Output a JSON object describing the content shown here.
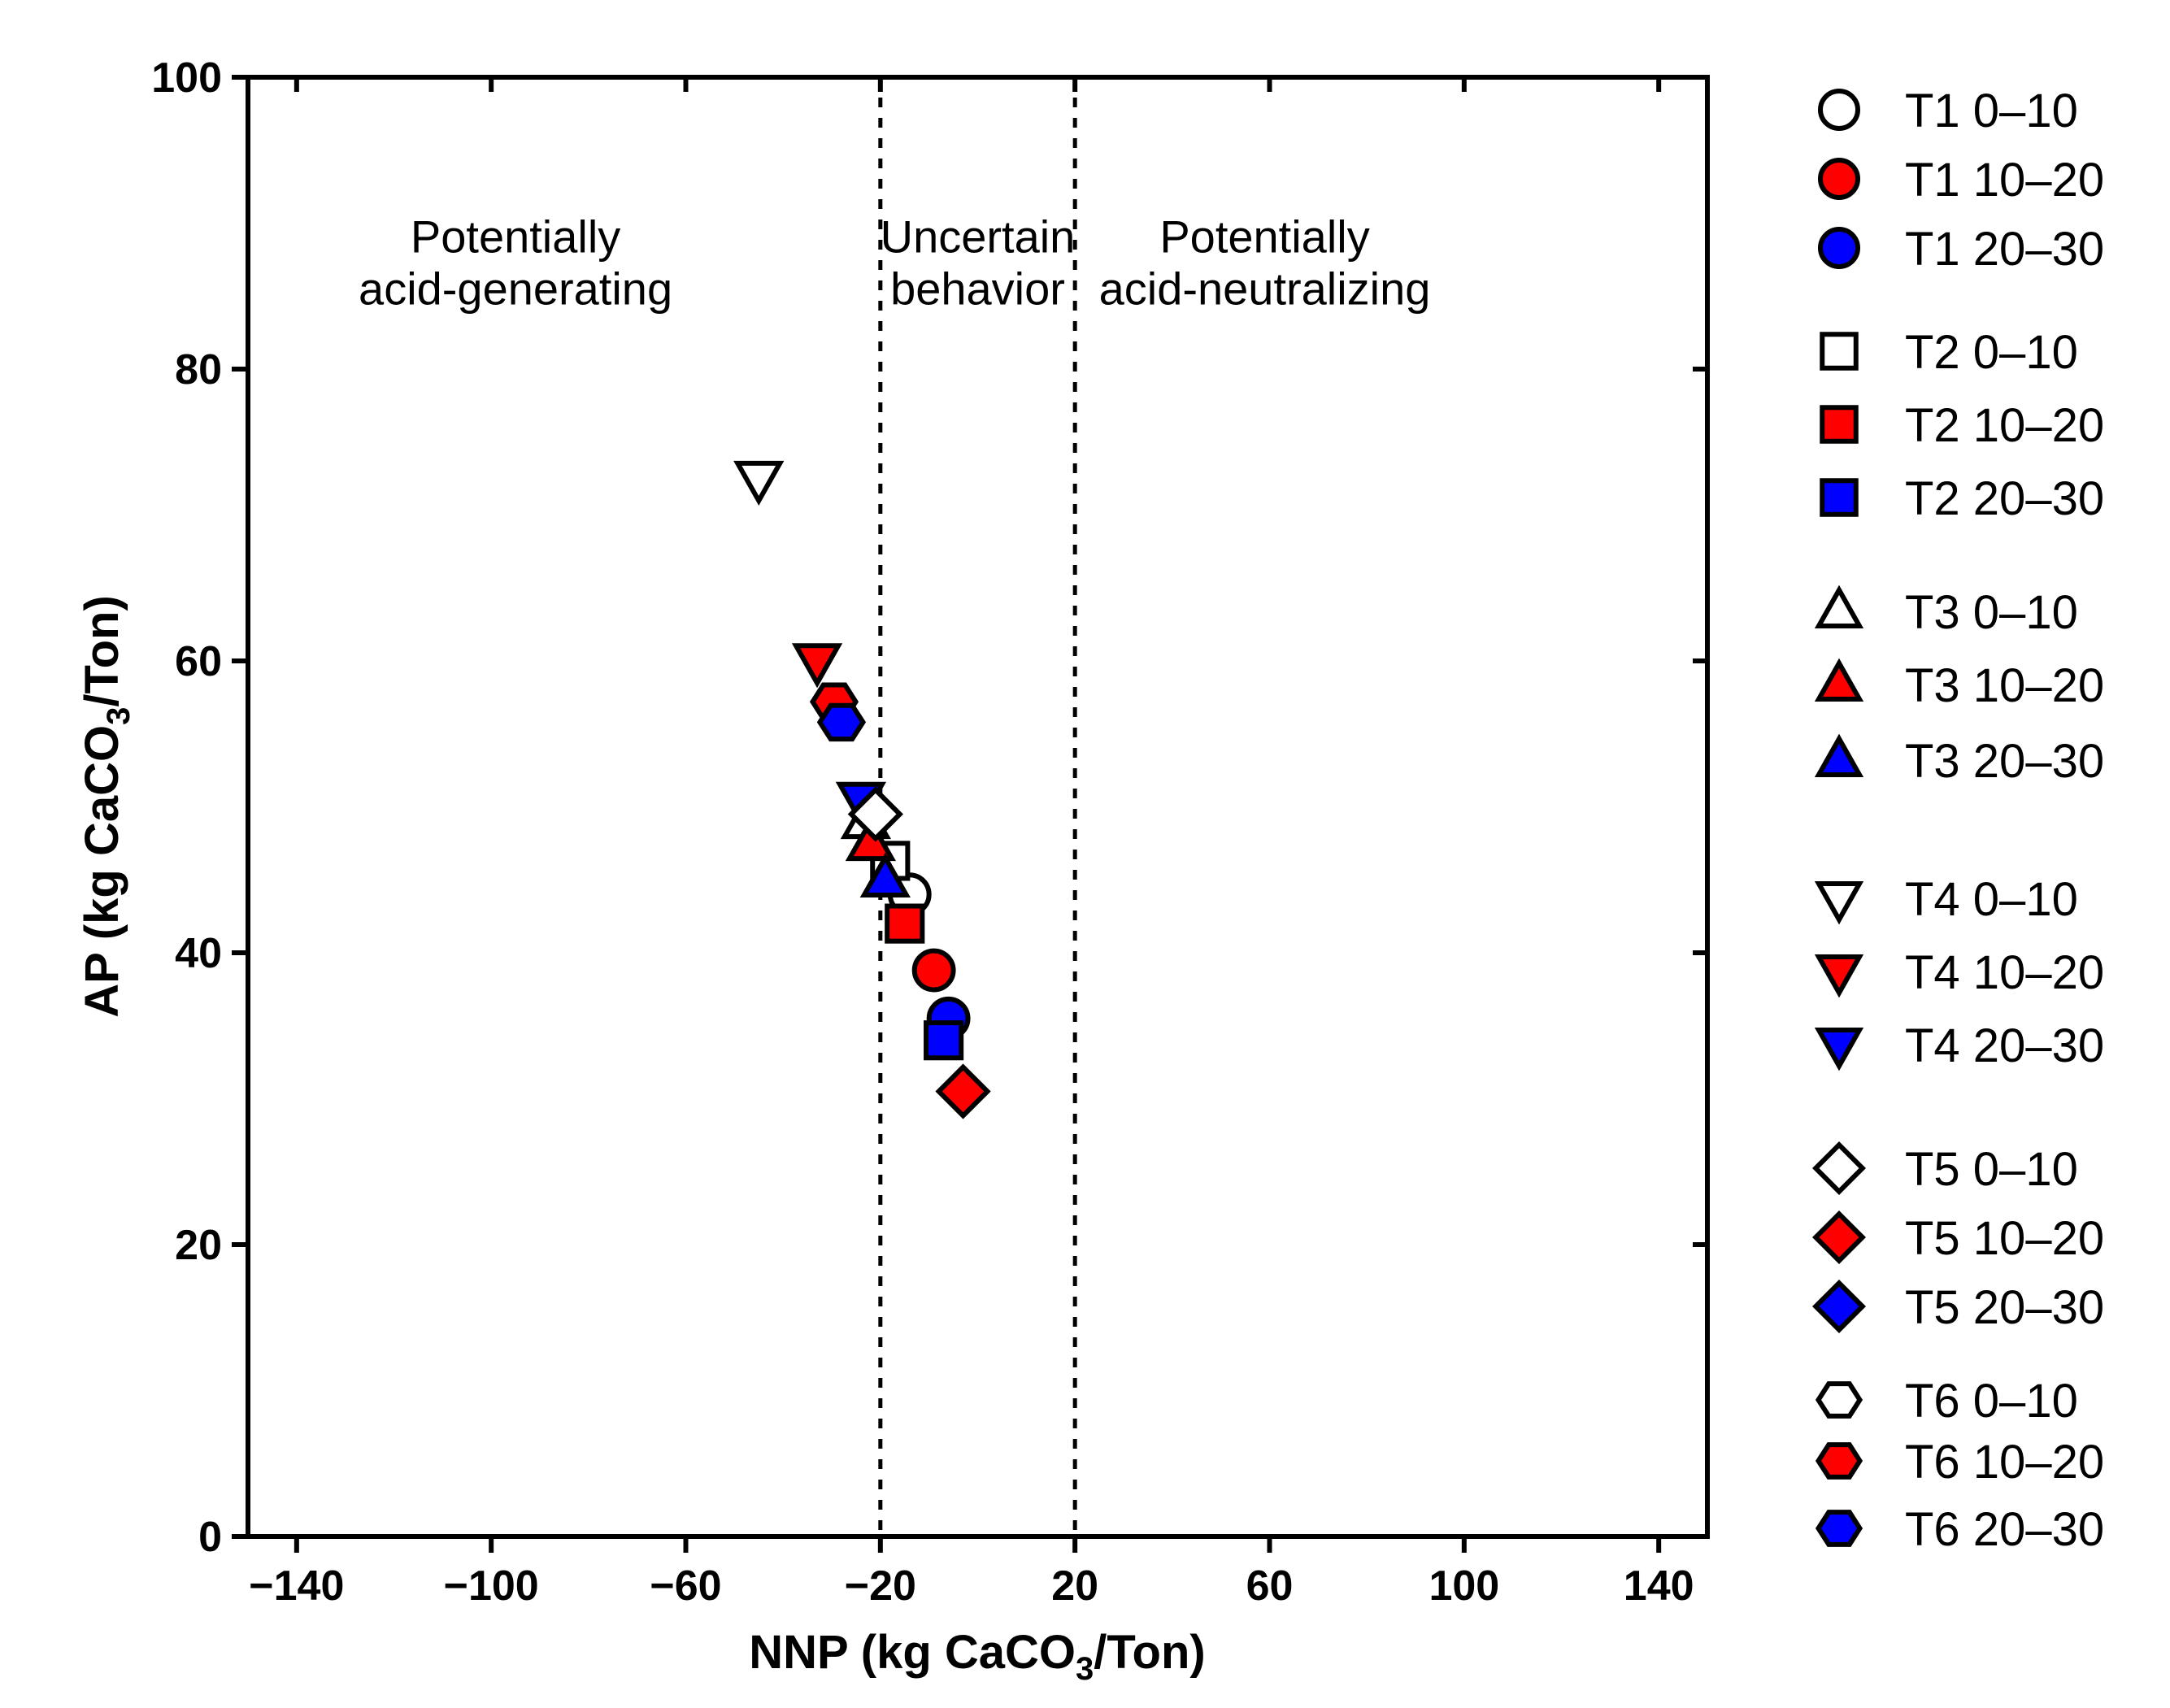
{
  "chart_data": {
    "type": "scatter",
    "title": "",
    "xlabel": "NNP (kg CaCO₃/Ton)",
    "ylabel": "AP (kg CaCO₃/Ton)",
    "xlabel_parts": {
      "pre": "NNP (kg CaCO",
      "sub": "3",
      "post": "/Ton)"
    },
    "ylabel_parts": {
      "pre": "AP (kg CaCO",
      "sub": "3",
      "post": "/Ton)"
    },
    "xlim": [
      -150,
      150
    ],
    "ylim": [
      0,
      100
    ],
    "xticks": [
      -140,
      -100,
      -60,
      -20,
      20,
      60,
      100,
      140
    ],
    "yticks": [
      0,
      20,
      40,
      60,
      80,
      100
    ],
    "xtick_labels": [
      "−140",
      "−100",
      "−60",
      "−20",
      "20",
      "60",
      "100",
      "140"
    ],
    "ytick_labels": [
      "0",
      "20",
      "40",
      "60",
      "80",
      "100"
    ],
    "grid": false,
    "legend_position": "right",
    "reference_lines": [
      {
        "axis": "x",
        "value": -20,
        "style": "dotted"
      },
      {
        "axis": "x",
        "value": 20,
        "style": "dotted"
      }
    ],
    "annotations": [
      {
        "lines": [
          "Potentially",
          "acid-generating"
        ],
        "x": -95,
        "y": 88
      },
      {
        "lines": [
          "Uncertain",
          "behavior"
        ],
        "x": 0,
        "y": 88
      },
      {
        "lines": [
          "Potentially",
          "acid-neutralizing"
        ],
        "x": 59,
        "y": 88
      }
    ],
    "series": [
      {
        "name": "T1 0–10",
        "marker": "circle",
        "fill": "#ffffff",
        "points": [
          {
            "x": -14,
            "y": 44
          }
        ]
      },
      {
        "name": "T1 10–20",
        "marker": "circle",
        "fill": "#ff0000",
        "points": [
          {
            "x": -9,
            "y": 38.8
          }
        ]
      },
      {
        "name": "T1 20–30",
        "marker": "circle",
        "fill": "#0000ff",
        "points": [
          {
            "x": -6,
            "y": 35.5
          }
        ]
      },
      {
        "name": "T2 0–10",
        "marker": "square",
        "fill": "#ffffff",
        "points": [
          {
            "x": -18,
            "y": 46.3
          }
        ]
      },
      {
        "name": "T2 10–20",
        "marker": "square",
        "fill": "#ff0000",
        "points": [
          {
            "x": -15,
            "y": 42
          }
        ]
      },
      {
        "name": "T2 20–30",
        "marker": "square",
        "fill": "#0000ff",
        "points": [
          {
            "x": -7,
            "y": 34
          }
        ]
      },
      {
        "name": "T3 0–10",
        "marker": "triangle-up",
        "fill": "#ffffff",
        "points": [
          {
            "x": -23,
            "y": 49
          }
        ]
      },
      {
        "name": "T3 10–20",
        "marker": "triangle-up",
        "fill": "#ff0000",
        "points": [
          {
            "x": -22,
            "y": 47.5
          }
        ]
      },
      {
        "name": "T3 20–30",
        "marker": "triangle-up",
        "fill": "#0000ff",
        "points": [
          {
            "x": -19,
            "y": 45
          }
        ]
      },
      {
        "name": "T4 0–10",
        "marker": "triangle-down",
        "fill": "#ffffff",
        "points": [
          {
            "x": -45,
            "y": 72.5
          }
        ]
      },
      {
        "name": "T4 10–20",
        "marker": "triangle-down",
        "fill": "#ff0000",
        "points": [
          {
            "x": -33,
            "y": 60
          }
        ]
      },
      {
        "name": "T4 20–30",
        "marker": "triangle-down",
        "fill": "#0000ff",
        "points": [
          {
            "x": -24,
            "y": 50.5
          }
        ]
      },
      {
        "name": "T5 0–10",
        "marker": "diamond",
        "fill": "#ffffff",
        "points": [
          {
            "x": -21,
            "y": 49.5
          }
        ]
      },
      {
        "name": "T5 10–20",
        "marker": "diamond",
        "fill": "#ff0000",
        "points": [
          {
            "x": -3,
            "y": 30.5
          }
        ]
      },
      {
        "name": "T5 20–30",
        "marker": "diamond",
        "fill": "#0000ff",
        "points": []
      },
      {
        "name": "T6 0–10",
        "marker": "hexagon",
        "fill": "#ffffff",
        "points": []
      },
      {
        "name": "T6 10–20",
        "marker": "hexagon",
        "fill": "#ff0000",
        "points": [
          {
            "x": -29.5,
            "y": 57.2
          }
        ]
      },
      {
        "name": "T6 20–30",
        "marker": "hexagon",
        "fill": "#0000ff",
        "points": [
          {
            "x": -28,
            "y": 55.8
          }
        ]
      }
    ]
  }
}
